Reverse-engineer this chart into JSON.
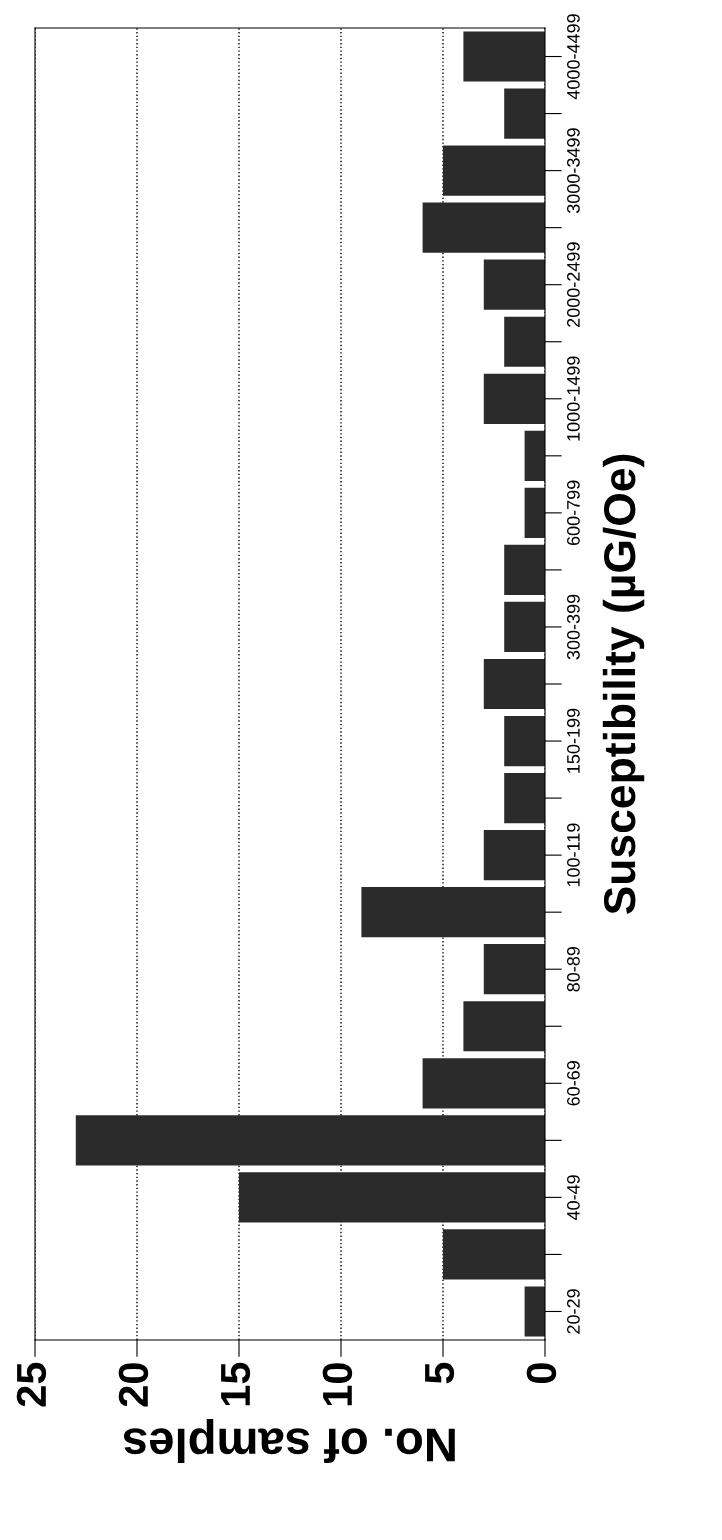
{
  "chart_data": {
    "type": "bar",
    "orientation": "horizontal",
    "xlabel": "No. of samples",
    "ylabel": "Susceptibility (µG/Oe)",
    "categories": [
      "4000-4499",
      null,
      "3000-3499",
      null,
      "2000-2499",
      null,
      "1000-1499",
      null,
      "600-799",
      null,
      "300-399",
      null,
      "150-199",
      null,
      "100-119",
      null,
      "80-89",
      null,
      "60-69",
      null,
      "40-49",
      null,
      "20-29"
    ],
    "values": [
      4,
      2,
      5,
      6,
      3,
      2,
      3,
      1,
      1,
      2,
      2,
      3,
      2,
      2,
      3,
      9,
      3,
      4,
      6,
      23,
      15,
      5,
      1
    ],
    "color": "#2b2b2b",
    "xlim": [
      25,
      0
    ],
    "xticks": [
      0,
      5,
      10,
      15,
      20,
      25
    ],
    "grid": "x"
  }
}
